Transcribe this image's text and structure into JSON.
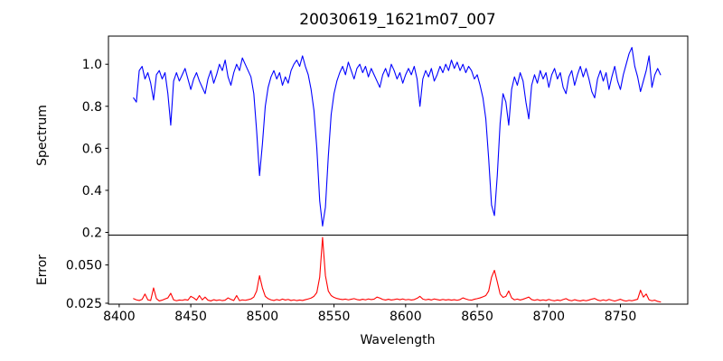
{
  "figure": {
    "background": "#ffffff"
  },
  "chart_data": {
    "type": "line",
    "title": "20030619_1621m07_007",
    "xlabel": "Wavelength",
    "grid": false,
    "legend": "none",
    "xlim": [
      8392.5,
      8797.0
    ],
    "xticks": [
      {
        "v": 8400,
        "label": "8400"
      },
      {
        "v": 8450,
        "label": "8450"
      },
      {
        "v": 8500,
        "label": "8500"
      },
      {
        "v": 8550,
        "label": "8550"
      },
      {
        "v": 8600,
        "label": "8600"
      },
      {
        "v": 8650,
        "label": "8650"
      },
      {
        "v": 8700,
        "label": "8700"
      },
      {
        "v": 8750,
        "label": "8750"
      }
    ],
    "x": {
      "start": 8410,
      "step": 2,
      "count": 185
    },
    "panels": [
      {
        "name": "spectrum",
        "ylabel": "Spectrum",
        "color": "#0000ff",
        "ylim": [
          0.187,
          1.134
        ],
        "yticks": [
          {
            "v": 0.2,
            "label": "0.2"
          },
          {
            "v": 0.4,
            "label": "0.4"
          },
          {
            "v": 0.6,
            "label": "0.6"
          },
          {
            "v": 0.8,
            "label": "0.8"
          },
          {
            "v": 1.0,
            "label": "1.0"
          }
        ],
        "features": "Ca II triplet absorption lines at 8498, 8542, 8662",
        "values": [
          0.84,
          0.82,
          0.97,
          0.99,
          0.93,
          0.96,
          0.91,
          0.83,
          0.95,
          0.97,
          0.93,
          0.96,
          0.86,
          0.71,
          0.92,
          0.96,
          0.92,
          0.95,
          0.98,
          0.93,
          0.88,
          0.93,
          0.96,
          0.92,
          0.89,
          0.86,
          0.93,
          0.97,
          0.91,
          0.95,
          1.0,
          0.97,
          1.02,
          0.94,
          0.9,
          0.96,
          1.0,
          0.97,
          1.03,
          1.0,
          0.97,
          0.94,
          0.86,
          0.68,
          0.47,
          0.62,
          0.8,
          0.89,
          0.94,
          0.97,
          0.93,
          0.96,
          0.9,
          0.94,
          0.91,
          0.97,
          1.0,
          1.02,
          0.99,
          1.04,
          0.99,
          0.95,
          0.88,
          0.78,
          0.6,
          0.35,
          0.23,
          0.32,
          0.56,
          0.76,
          0.86,
          0.92,
          0.96,
          0.99,
          0.95,
          1.01,
          0.97,
          0.93,
          0.98,
          1.0,
          0.96,
          0.99,
          0.94,
          0.98,
          0.95,
          0.92,
          0.89,
          0.95,
          0.98,
          0.94,
          1.0,
          0.97,
          0.93,
          0.96,
          0.91,
          0.95,
          0.98,
          0.95,
          0.99,
          0.93,
          0.8,
          0.93,
          0.97,
          0.94,
          0.98,
          0.92,
          0.95,
          0.99,
          0.96,
          1.0,
          0.97,
          1.02,
          0.98,
          1.01,
          0.97,
          1.0,
          0.96,
          0.99,
          0.97,
          0.93,
          0.95,
          0.9,
          0.84,
          0.74,
          0.55,
          0.33,
          0.28,
          0.47,
          0.72,
          0.86,
          0.82,
          0.71,
          0.88,
          0.94,
          0.9,
          0.96,
          0.92,
          0.82,
          0.74,
          0.9,
          0.95,
          0.91,
          0.97,
          0.93,
          0.96,
          0.89,
          0.95,
          0.98,
          0.93,
          0.96,
          0.89,
          0.86,
          0.94,
          0.97,
          0.9,
          0.95,
          0.99,
          0.94,
          0.98,
          0.93,
          0.87,
          0.84,
          0.93,
          0.97,
          0.92,
          0.96,
          0.88,
          0.94,
          0.99,
          0.92,
          0.88,
          0.95,
          1.0,
          1.05,
          1.08,
          0.99,
          0.94,
          0.87,
          0.92,
          0.97,
          1.04,
          0.89,
          0.95,
          0.98,
          0.95
        ]
      },
      {
        "name": "error",
        "ylabel": "Error",
        "color": "#ff0000",
        "ylim": [
          0.0244,
          0.0695
        ],
        "yticks": [
          {
            "v": 0.05,
            "label": "0.050"
          },
          {
            "v": 0.025,
            "label": "0.025"
          }
        ],
        "features": "error peaks at 8498 (~0.043), 8542 (~0.068), 8662 (~0.047)",
        "values": [
          0.028,
          0.0272,
          0.0268,
          0.0275,
          0.031,
          0.0272,
          0.0268,
          0.035,
          0.028,
          0.0265,
          0.027,
          0.0278,
          0.0285,
          0.0315,
          0.0272,
          0.0266,
          0.0271,
          0.0269,
          0.0274,
          0.027,
          0.0295,
          0.0285,
          0.027,
          0.03,
          0.0272,
          0.029,
          0.027,
          0.0265,
          0.0273,
          0.0268,
          0.0272,
          0.0267,
          0.027,
          0.0285,
          0.0275,
          0.0268,
          0.03,
          0.0267,
          0.0272,
          0.0269,
          0.0273,
          0.0278,
          0.029,
          0.033,
          0.043,
          0.035,
          0.0295,
          0.028,
          0.0272,
          0.0268,
          0.0274,
          0.0269,
          0.0277,
          0.0271,
          0.0275,
          0.0268,
          0.0272,
          0.0267,
          0.0271,
          0.0268,
          0.0273,
          0.0278,
          0.0284,
          0.0295,
          0.032,
          0.042,
          0.068,
          0.043,
          0.033,
          0.03,
          0.0288,
          0.0281,
          0.0277,
          0.0274,
          0.0277,
          0.0272,
          0.0276,
          0.028,
          0.0274,
          0.0271,
          0.0276,
          0.0272,
          0.0278,
          0.0274,
          0.0277,
          0.029,
          0.0284,
          0.0275,
          0.0271,
          0.0276,
          0.0271,
          0.0274,
          0.0278,
          0.0273,
          0.0278,
          0.0272,
          0.0275,
          0.0271,
          0.0274,
          0.0282,
          0.0295,
          0.0277,
          0.0272,
          0.0276,
          0.0271,
          0.0278,
          0.0274,
          0.027,
          0.0275,
          0.0271,
          0.0274,
          0.027,
          0.0273,
          0.0269,
          0.0274,
          0.0285,
          0.0278,
          0.0272,
          0.027,
          0.0276,
          0.028,
          0.0285,
          0.0292,
          0.03,
          0.033,
          0.042,
          0.0465,
          0.039,
          0.031,
          0.0288,
          0.0295,
          0.033,
          0.0285,
          0.0272,
          0.0277,
          0.0271,
          0.0276,
          0.0283,
          0.029,
          0.0274,
          0.0269,
          0.0274,
          0.0268,
          0.0272,
          0.0268,
          0.0275,
          0.0269,
          0.0266,
          0.0271,
          0.0267,
          0.0274,
          0.028,
          0.027,
          0.0266,
          0.0273,
          0.0268,
          0.0265,
          0.027,
          0.0266,
          0.0271,
          0.0277,
          0.0281,
          0.0271,
          0.0266,
          0.0272,
          0.0267,
          0.0275,
          0.0269,
          0.0264,
          0.027,
          0.0276,
          0.0268,
          0.0264,
          0.0269,
          0.0266,
          0.0271,
          0.0276,
          0.0335,
          0.029,
          0.031,
          0.0272,
          0.0266,
          0.027,
          0.0262,
          0.0258
        ]
      }
    ]
  }
}
